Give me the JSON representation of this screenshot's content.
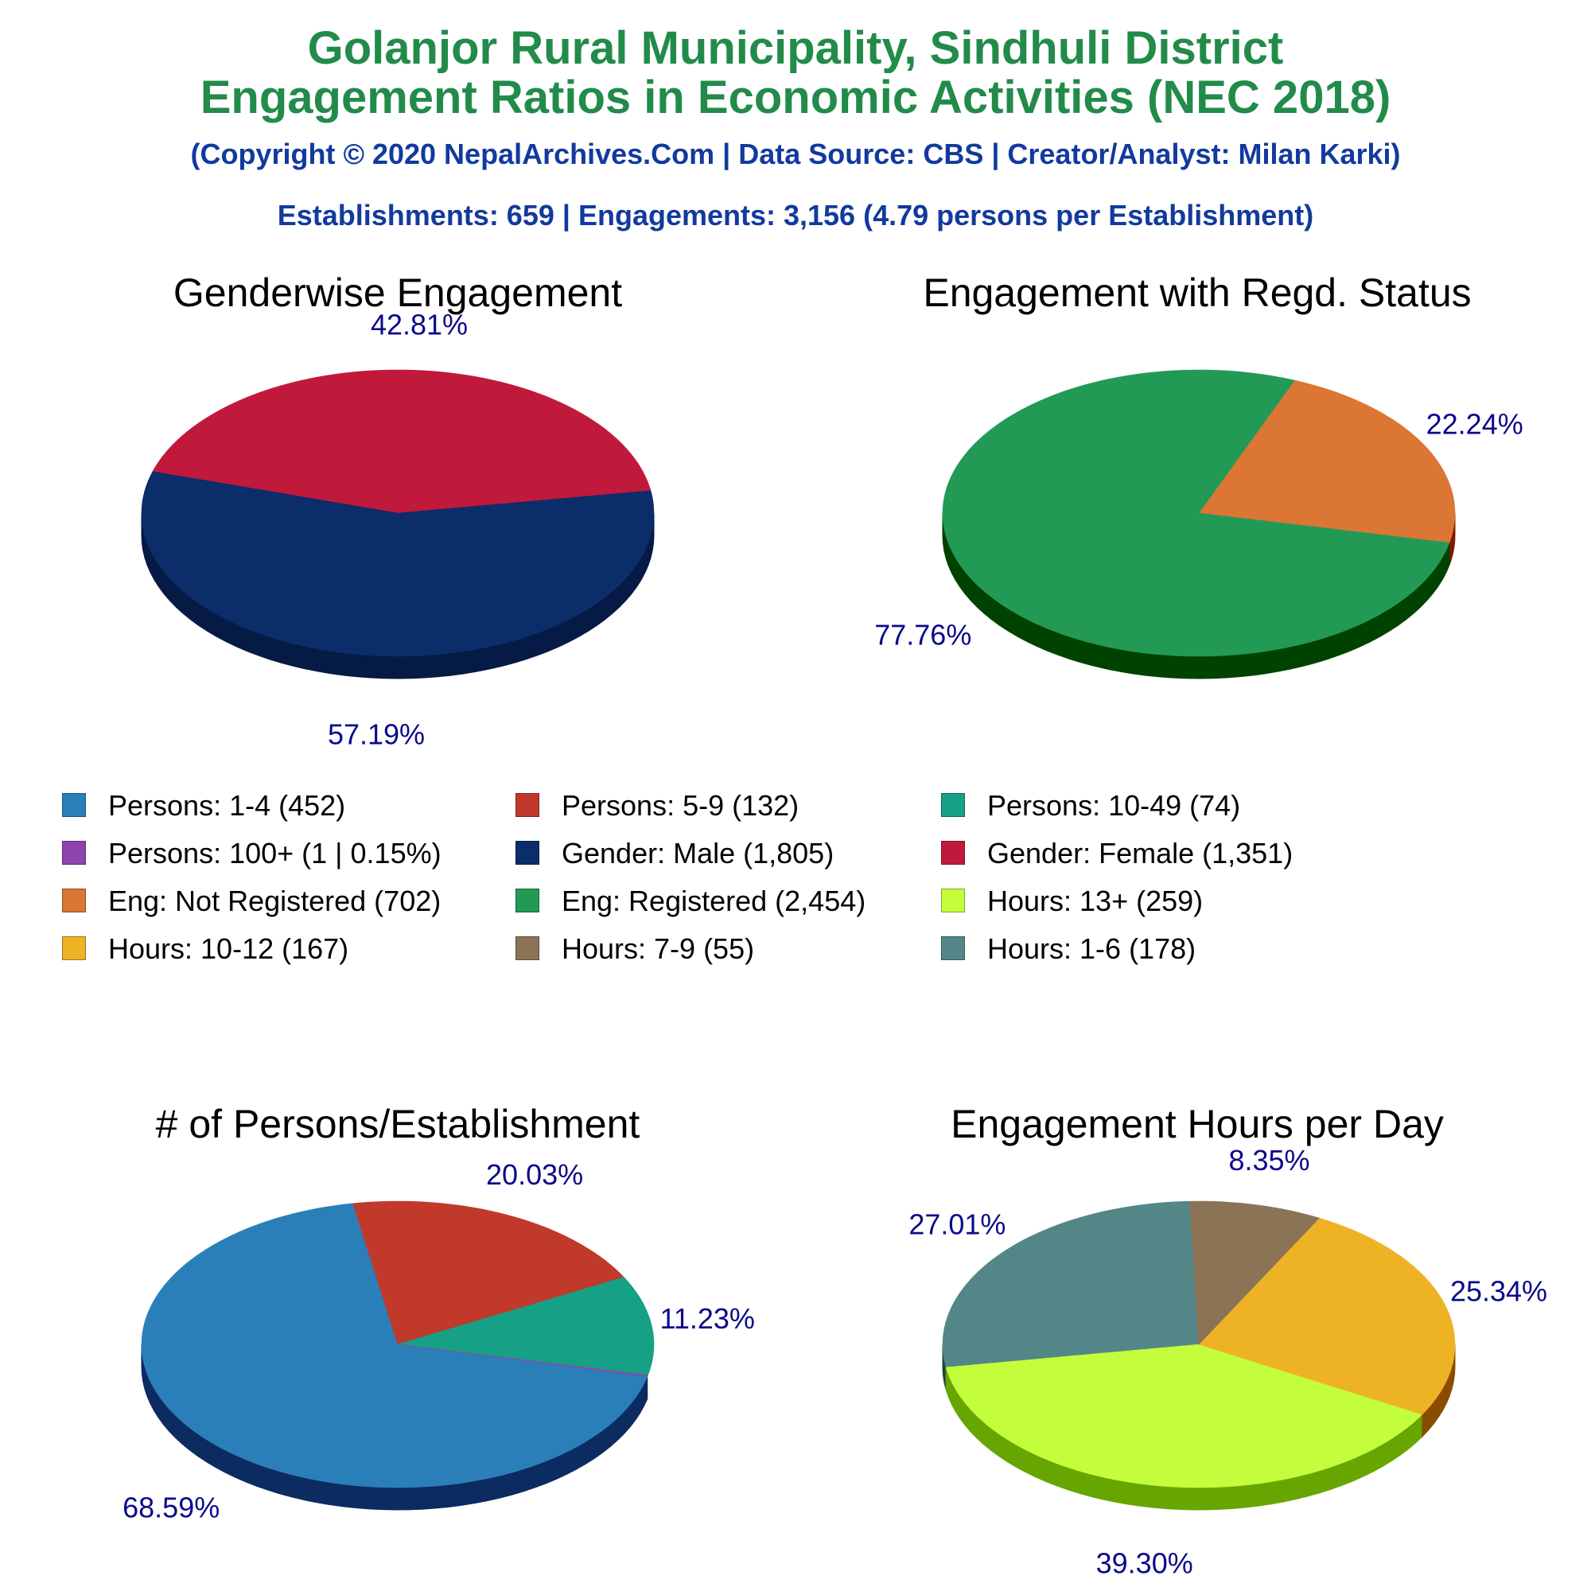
{
  "header": {
    "title_line1": "Golanjor Rural Municipality, Sindhuli District",
    "title_line2": "Engagement Ratios in Economic Activities (NEC 2018)",
    "credit": "(Copyright © 2020 NepalArchives.Com | Data Source: CBS | Creator/Analyst: Milan Karki)",
    "summary": "Establishments: 659 | Engagements: 3,156 (4.79 persons per Establishment)"
  },
  "chart_data": [
    {
      "type": "pie",
      "title": "Genderwise Engagement",
      "slices": [
        {
          "label": "Gender: Male",
          "value": 1805,
          "percent": 57.19,
          "pct_label": "57.19%",
          "color": "#0b2d69",
          "side_color": "#051a44"
        },
        {
          "label": "Gender: Female",
          "value": 1351,
          "percent": 42.81,
          "pct_label": "42.81%",
          "color": "#c0193c",
          "side_color": "#6b0000"
        }
      ]
    },
    {
      "type": "pie",
      "title": "Engagement with Regd. Status",
      "slices": [
        {
          "label": "Eng: Not Registered",
          "value": 702,
          "percent": 22.24,
          "pct_label": "22.24%",
          "color": "#db7634",
          "side_color": "#7d1a00"
        },
        {
          "label": "Eng: Registered",
          "value": 2454,
          "percent": 77.76,
          "pct_label": "77.76%",
          "color": "#229a56",
          "side_color": "#004200"
        }
      ]
    },
    {
      "type": "pie",
      "title": "# of Persons/Establishment",
      "slices": [
        {
          "label": "Persons: 1-4",
          "value": 452,
          "percent": 68.59,
          "pct_label": "68.59%",
          "color": "#2b7fb8",
          "side_color": "#0c2b60"
        },
        {
          "label": "Persons: 5-9",
          "value": 132,
          "percent": 20.03,
          "pct_label": "20.03%",
          "color": "#c0392b",
          "side_color": "#6b0000"
        },
        {
          "label": "Persons: 10-49",
          "value": 74,
          "percent": 11.23,
          "pct_label": "11.23%",
          "color": "#16a085",
          "side_color": "#004a2a"
        },
        {
          "label": "Persons: 100+",
          "value": 1,
          "percent": 0.15,
          "pct_label": "",
          "color": "#8e44ad",
          "side_color": "#3a0f55"
        }
      ]
    },
    {
      "type": "pie",
      "title": "Engagement Hours per Day",
      "slices": [
        {
          "label": "Hours: 1-6",
          "value": 178,
          "percent": 27.01,
          "pct_label": "27.01%",
          "color": "#538787",
          "side_color": "#1e4444"
        },
        {
          "label": "Hours: 13+",
          "value": 259,
          "percent": 39.3,
          "pct_label": "39.30%",
          "color": "#c3fd3c",
          "side_color": "#67a600"
        },
        {
          "label": "Hours: 10-12",
          "value": 167,
          "percent": 25.34,
          "pct_label": "25.34%",
          "color": "#edb325",
          "side_color": "#8a4d00"
        },
        {
          "label": "Hours: 7-9",
          "value": 55,
          "percent": 8.35,
          "pct_label": "8.35%",
          "color": "#8b7355",
          "side_color": "#4a3620"
        }
      ]
    }
  ],
  "legend": {
    "items": [
      {
        "label": "Persons: 1-4 (452)",
        "color": "#2b7fb8"
      },
      {
        "label": "Persons: 5-9 (132)",
        "color": "#c0392b"
      },
      {
        "label": "Persons: 10-49 (74)",
        "color": "#16a085"
      },
      {
        "label": "Persons: 100+ (1 | 0.15%)",
        "color": "#8e44ad"
      },
      {
        "label": "Gender: Male (1,805)",
        "color": "#0b2d69"
      },
      {
        "label": "Gender: Female (1,351)",
        "color": "#c0193c"
      },
      {
        "label": "Eng: Not Registered (702)",
        "color": "#db7634"
      },
      {
        "label": "Eng: Registered (2,454)",
        "color": "#229a56"
      },
      {
        "label": "Hours: 13+ (259)",
        "color": "#c3fd3c"
      },
      {
        "label": "Hours: 10-12 (167)",
        "color": "#edb325"
      },
      {
        "label": "Hours: 7-9 (55)",
        "color": "#8b7355"
      },
      {
        "label": "Hours: 1-6 (178)",
        "color": "#538787"
      }
    ]
  }
}
